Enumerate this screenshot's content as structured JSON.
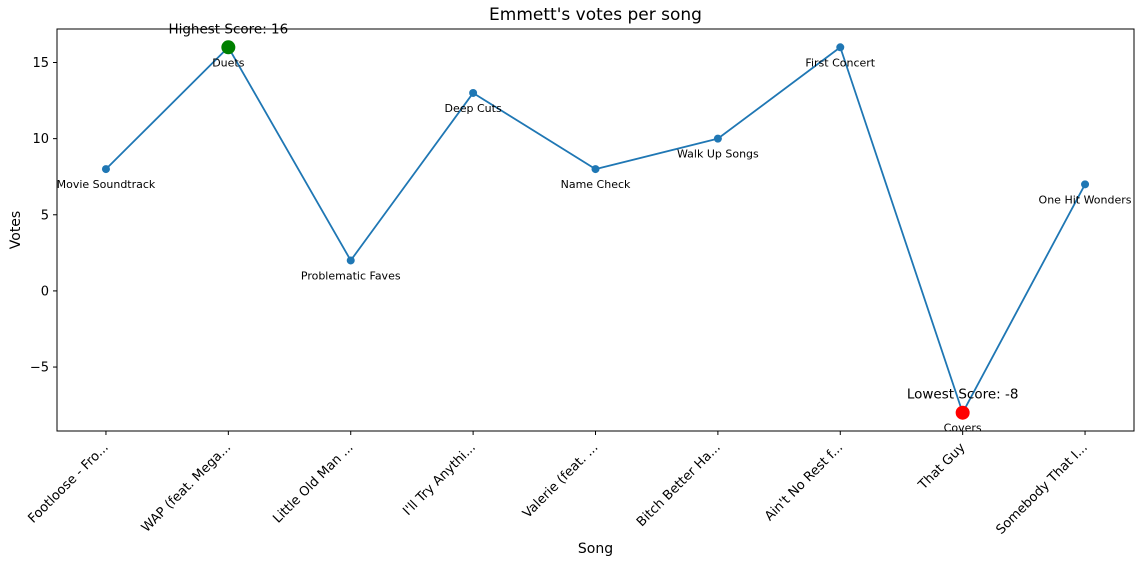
{
  "chart_data": {
    "type": "line",
    "title": "Emmett's votes per song",
    "xlabel": "Song",
    "ylabel": "Votes",
    "categories": [
      "Footloose - Fro...",
      "WAP (feat. Mega...",
      "Little Old Man ...",
      "I'll Try Anythi...",
      "Valerie (feat. ...",
      "Bitch Better Ha...",
      "Ain't No Rest f...",
      "That Guy",
      "Somebody That I..."
    ],
    "point_labels": [
      "Movie Soundtrack",
      "Duets",
      "Problematic Faves",
      "Deep Cuts",
      "Name Check",
      "Walk Up Songs",
      "First Concert",
      "Covers",
      "One Hit Wonders"
    ],
    "values": [
      8,
      16,
      2,
      13,
      8,
      10,
      16,
      -8,
      7
    ],
    "yticks": [
      -5,
      0,
      5,
      10,
      15
    ],
    "ylim": [
      -9.2,
      17.2
    ],
    "grid": "off",
    "legend": "off",
    "line_color": "#1f77b4",
    "marker_color": "#1f77b4",
    "frame_color": "#000000",
    "annotations": [
      {
        "index": 1,
        "text": "Highest Score: 16",
        "color": "#008000"
      },
      {
        "index": 7,
        "text": "Lowest Score: -8",
        "color": "#ff0000"
      }
    ]
  }
}
